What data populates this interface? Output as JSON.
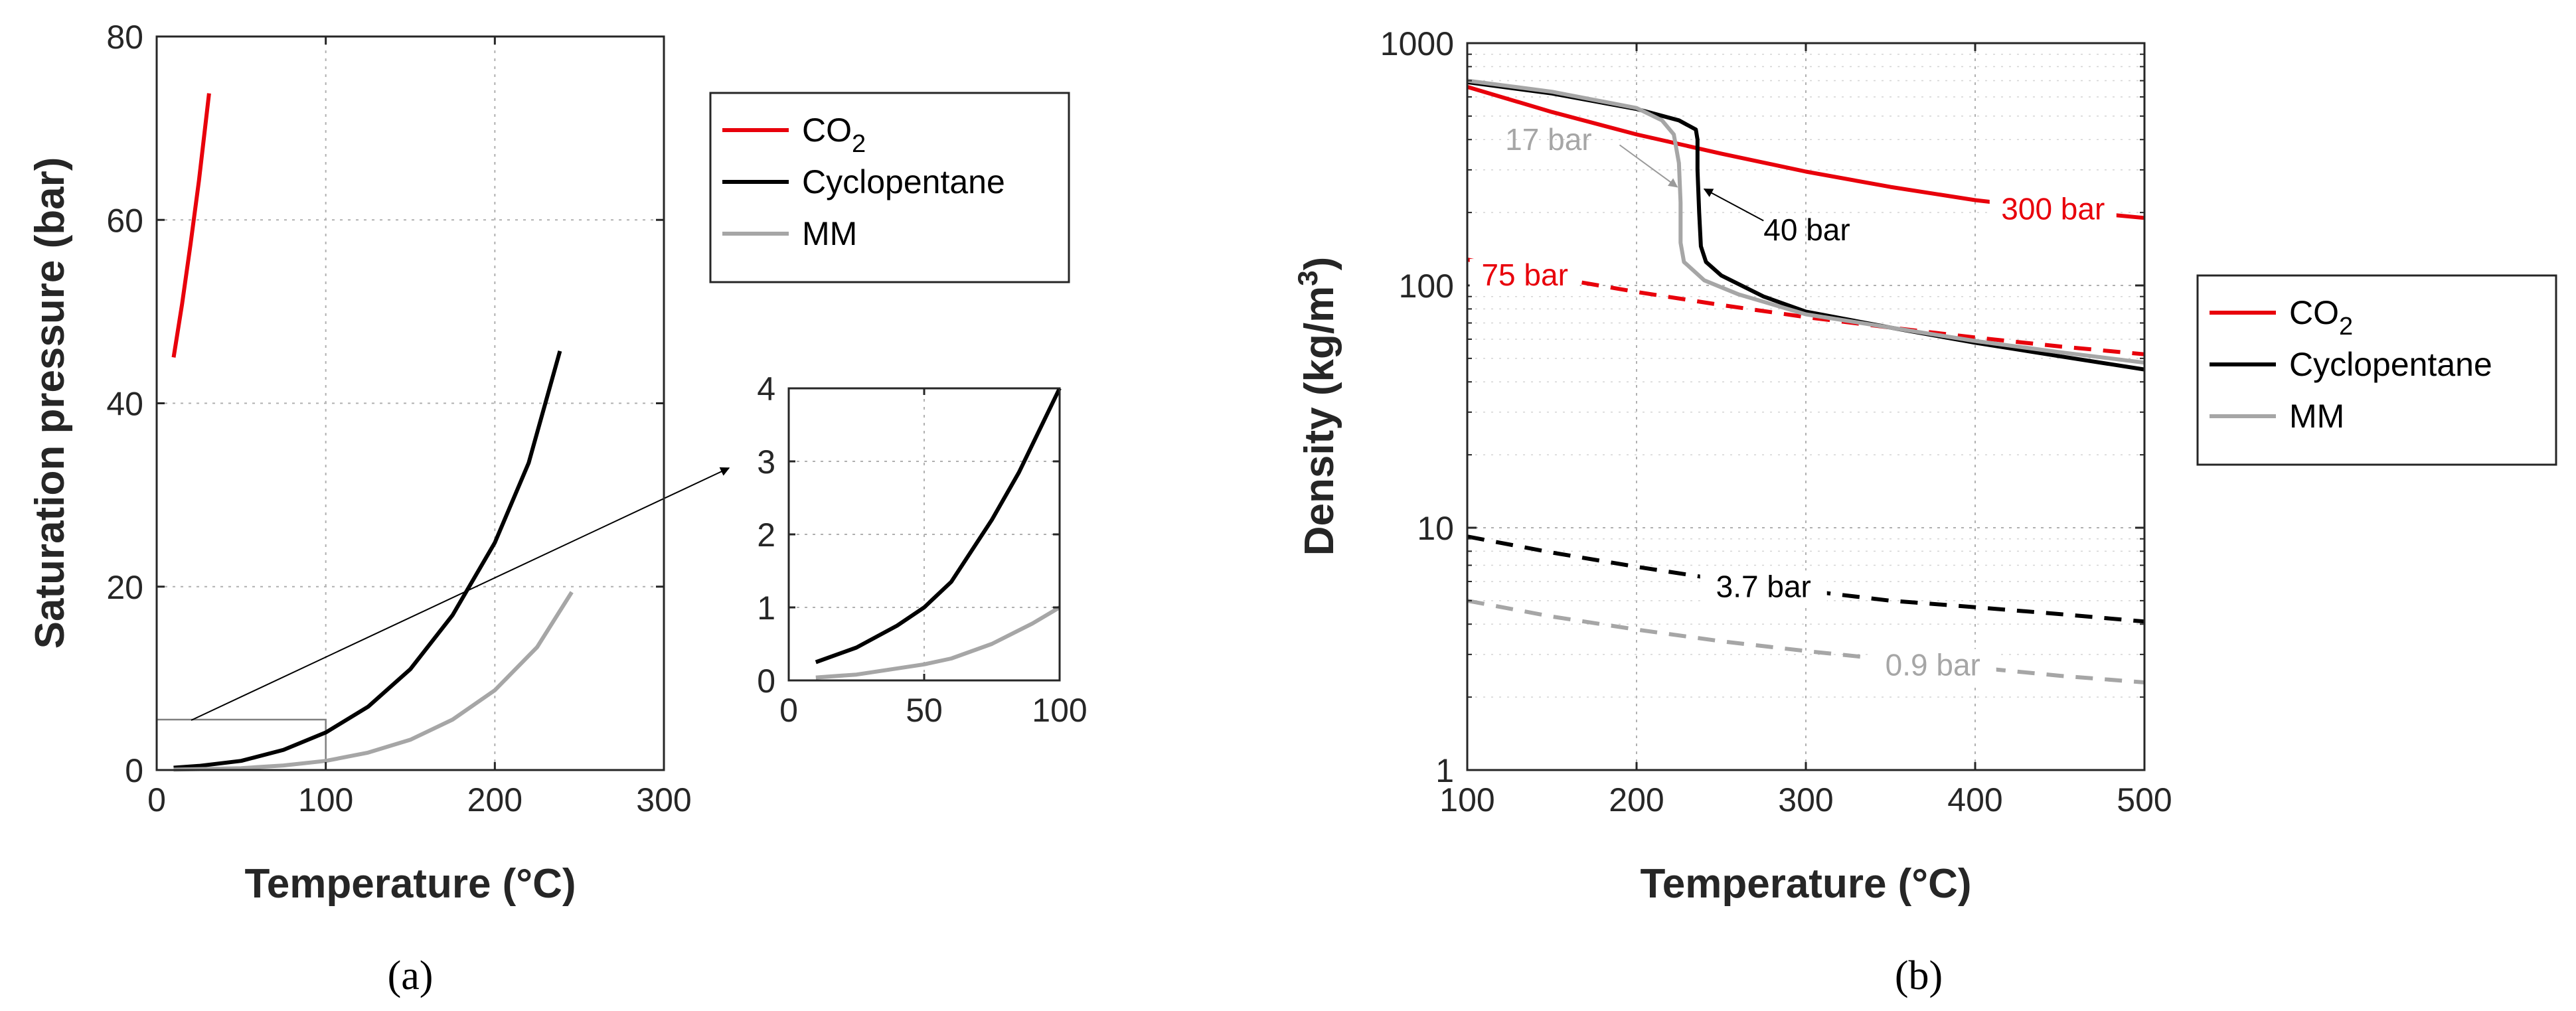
{
  "panel_labels": {
    "a": "(a)",
    "b": "(b)"
  },
  "colors": {
    "co2": "#e8000b",
    "cyclopentane": "#000000",
    "mm": "#a6a6a6",
    "axis": "#262626"
  },
  "chart_data": [
    {
      "id": "a_main",
      "type": "line",
      "xlabel": "Temperature (°C)",
      "ylabel": "Saturation pressure (bar)",
      "xlim": [
        0,
        300
      ],
      "ylim": [
        0,
        80
      ],
      "xticks": [
        0,
        100,
        200,
        300
      ],
      "yticks": [
        0,
        20,
        40,
        60,
        80
      ],
      "grid": true,
      "legend": {
        "position": "outside-right",
        "entries": [
          {
            "key": "co2",
            "label": "CO",
            "sub": "2"
          },
          {
            "key": "cyclopentane",
            "label": "Cyclopentane"
          },
          {
            "key": "mm",
            "label": "MM"
          }
        ]
      },
      "series": [
        {
          "name": "CO2",
          "key": "co2",
          "style": "solid",
          "points": [
            [
              10,
              45
            ],
            [
              15,
              50.8
            ],
            [
              20,
              57.3
            ],
            [
              25,
              64.3
            ],
            [
              31,
              73.8
            ]
          ]
        },
        {
          "name": "Cyclopentane",
          "key": "cyclopentane",
          "style": "solid",
          "points": [
            [
              10,
              0.25
            ],
            [
              25,
              0.45
            ],
            [
              50,
              1.0
            ],
            [
              75,
              2.2
            ],
            [
              100,
              4.1
            ],
            [
              125,
              6.9
            ],
            [
              150,
              11.0
            ],
            [
              175,
              16.9
            ],
            [
              200,
              24.8
            ],
            [
              220,
              33.5
            ],
            [
              238.5,
              45.7
            ]
          ]
        },
        {
          "name": "MM",
          "key": "mm",
          "style": "solid",
          "points": [
            [
              10,
              0.04
            ],
            [
              50,
              0.2
            ],
            [
              75,
              0.5
            ],
            [
              100,
              1.0
            ],
            [
              125,
              1.9
            ],
            [
              150,
              3.3
            ],
            [
              175,
              5.5
            ],
            [
              200,
              8.7
            ],
            [
              225,
              13.4
            ],
            [
              245.5,
              19.4
            ]
          ]
        }
      ],
      "zoom_box": {
        "x": [
          0,
          100
        ],
        "y": [
          0,
          5.5
        ]
      }
    },
    {
      "id": "a_inset",
      "type": "line",
      "xlim": [
        0,
        100
      ],
      "ylim": [
        0,
        4
      ],
      "xticks": [
        0,
        50,
        100
      ],
      "yticks": [
        0,
        1,
        2,
        3,
        4
      ],
      "grid": true,
      "series": [
        {
          "name": "Cyclopentane",
          "key": "cyclopentane",
          "style": "solid",
          "points": [
            [
              10,
              0.25
            ],
            [
              25,
              0.45
            ],
            [
              40,
              0.75
            ],
            [
              50,
              1.0
            ],
            [
              60,
              1.35
            ],
            [
              75,
              2.2
            ],
            [
              85,
              2.85
            ],
            [
              100,
              4.0
            ]
          ]
        },
        {
          "name": "MM",
          "key": "mm",
          "style": "solid",
          "points": [
            [
              10,
              0.04
            ],
            [
              25,
              0.08
            ],
            [
              50,
              0.22
            ],
            [
              60,
              0.3
            ],
            [
              75,
              0.5
            ],
            [
              90,
              0.78
            ],
            [
              100,
              1.0
            ]
          ]
        }
      ]
    },
    {
      "id": "b",
      "type": "line",
      "xlabel": "Temperature (°C)",
      "ylabel": "Density (kg/m",
      "ylabel_sup": "3",
      "ylabel_end": ")",
      "xlim": [
        100,
        500
      ],
      "ylim": [
        1,
        1000
      ],
      "yscale": "log",
      "xticks": [
        100,
        200,
        300,
        400,
        500
      ],
      "yticks": [
        1,
        10,
        100,
        1000
      ],
      "grid": true,
      "legend": {
        "position": "outside-right",
        "entries": [
          {
            "key": "co2",
            "label": "CO",
            "sub": "2"
          },
          {
            "key": "cyclopentane",
            "label": "Cyclopentane"
          },
          {
            "key": "mm",
            "label": "MM"
          }
        ]
      },
      "series": [
        {
          "name": "CO2",
          "key": "co2",
          "style": "solid",
          "label": "300 bar",
          "points": [
            [
              100,
              660
            ],
            [
              150,
              520
            ],
            [
              200,
              420
            ],
            [
              250,
              350
            ],
            [
              300,
              295
            ],
            [
              350,
              255
            ],
            [
              400,
              225
            ],
            [
              450,
              205
            ],
            [
              500,
              190
            ]
          ]
        },
        {
          "name": "CO2",
          "key": "co2",
          "style": "dashed",
          "label": "75 bar",
          "points": [
            [
              100,
              128
            ],
            [
              150,
              108
            ],
            [
              200,
              94
            ],
            [
              250,
              83
            ],
            [
              300,
              74
            ],
            [
              350,
              67
            ],
            [
              400,
              61
            ],
            [
              450,
              56
            ],
            [
              500,
              52
            ]
          ]
        },
        {
          "name": "Cyclopentane",
          "key": "cyclopentane",
          "style": "solid",
          "label": "40 bar",
          "points": [
            [
              100,
              690
            ],
            [
              150,
              620
            ],
            [
              200,
              535
            ],
            [
              225,
              480
            ],
            [
              235,
              440
            ],
            [
              236,
              400
            ],
            [
              236,
              300
            ],
            [
              237,
              200
            ],
            [
              238,
              145
            ],
            [
              241,
              125
            ],
            [
              250,
              110
            ],
            [
              275,
              90
            ],
            [
              300,
              78
            ],
            [
              350,
              67
            ],
            [
              400,
              58
            ],
            [
              450,
              51
            ],
            [
              500,
              45
            ]
          ]
        },
        {
          "name": "Cyclopentane",
          "key": "cyclopentane",
          "style": "dashed",
          "label": "3.7 bar",
          "points": [
            [
              100,
              9.2
            ],
            [
              150,
              7.9
            ],
            [
              200,
              6.9
            ],
            [
              250,
              6.1
            ],
            [
              300,
              5.5
            ],
            [
              350,
              5.0
            ],
            [
              400,
              4.7
            ],
            [
              450,
              4.4
            ],
            [
              500,
              4.1
            ]
          ]
        },
        {
          "name": "MM",
          "key": "mm",
          "style": "solid",
          "label": "17 bar",
          "points": [
            [
              100,
              700
            ],
            [
              150,
              630
            ],
            [
              200,
              540
            ],
            [
              215,
              480
            ],
            [
              222,
              420
            ],
            [
              225,
              320
            ],
            [
              226,
              220
            ],
            [
              226,
              150
            ],
            [
              228,
              125
            ],
            [
              240,
              105
            ],
            [
              260,
              92
            ],
            [
              300,
              76
            ],
            [
              350,
              67
            ],
            [
              400,
              59
            ],
            [
              450,
              53
            ],
            [
              500,
              48
            ]
          ]
        },
        {
          "name": "MM",
          "key": "mm",
          "style": "dashed",
          "label": "0.9 bar",
          "points": [
            [
              100,
              5.0
            ],
            [
              150,
              4.3
            ],
            [
              200,
              3.8
            ],
            [
              250,
              3.4
            ],
            [
              300,
              3.1
            ],
            [
              350,
              2.85
            ],
            [
              400,
              2.65
            ],
            [
              450,
              2.45
            ],
            [
              500,
              2.3
            ]
          ]
        }
      ]
    }
  ]
}
